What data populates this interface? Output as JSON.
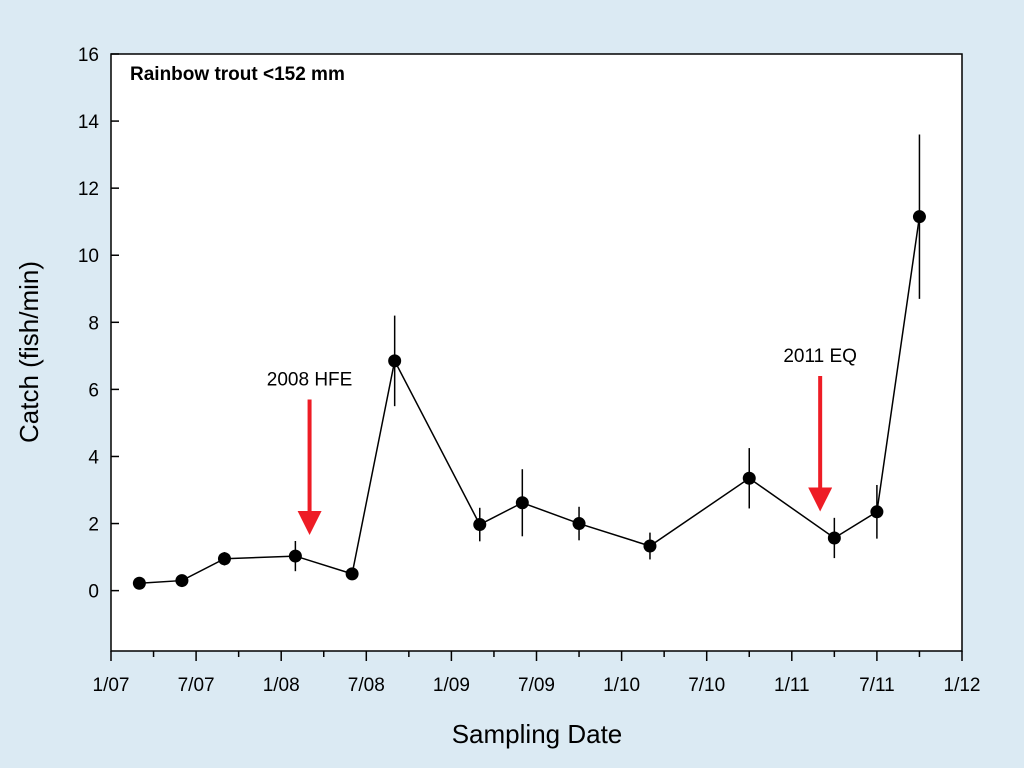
{
  "chart_data": {
    "type": "line",
    "title": "Rainbow trout <152 mm",
    "xlabel": "Sampling Date",
    "ylabel": "Catch (fish/min)",
    "x_ticks": [
      "1/07",
      "7/07",
      "1/08",
      "7/08",
      "1/09",
      "7/09",
      "1/10",
      "7/10",
      "1/11",
      "7/11",
      "1/12"
    ],
    "y_ticks": [
      0,
      2,
      4,
      6,
      8,
      10,
      12,
      14,
      16
    ],
    "ylim": [
      -1.8,
      16
    ],
    "grid": false,
    "legend": "none",
    "series": [
      {
        "color": "#000000",
        "points": [
          {
            "x": "2007-03",
            "y": 0.22,
            "err": 0.0
          },
          {
            "x": "2007-06",
            "y": 0.3,
            "err": 0.0
          },
          {
            "x": "2007-09",
            "y": 0.95,
            "err": 0.2
          },
          {
            "x": "2008-02",
            "y": 1.03,
            "err": 0.45
          },
          {
            "x": "2008-06",
            "y": 0.5,
            "err": 0.0
          },
          {
            "x": "2008-09",
            "y": 6.85,
            "err": 1.35
          },
          {
            "x": "2009-03",
            "y": 1.97,
            "err": 0.5
          },
          {
            "x": "2009-06",
            "y": 2.62,
            "err": 1.0
          },
          {
            "x": "2009-10",
            "y": 2.0,
            "err": 0.5
          },
          {
            "x": "2010-03",
            "y": 1.33,
            "err": 0.4
          },
          {
            "x": "2010-10",
            "y": 3.35,
            "err": 0.9
          },
          {
            "x": "2011-04",
            "y": 1.57,
            "err": 0.6
          },
          {
            "x": "2011-07",
            "y": 2.35,
            "err": 0.8
          },
          {
            "x": "2011-10",
            "y": 11.15,
            "err": 2.45
          }
        ]
      }
    ],
    "annotations": [
      {
        "text": "2008 HFE",
        "x": "2008-03",
        "y_from": 5.7,
        "y_to": 1.6,
        "color": "#ee1c25"
      },
      {
        "text": "2011 EQ",
        "x": "2011-03",
        "y_from": 6.4,
        "y_to": 2.3,
        "color": "#ee1c25"
      }
    ]
  }
}
